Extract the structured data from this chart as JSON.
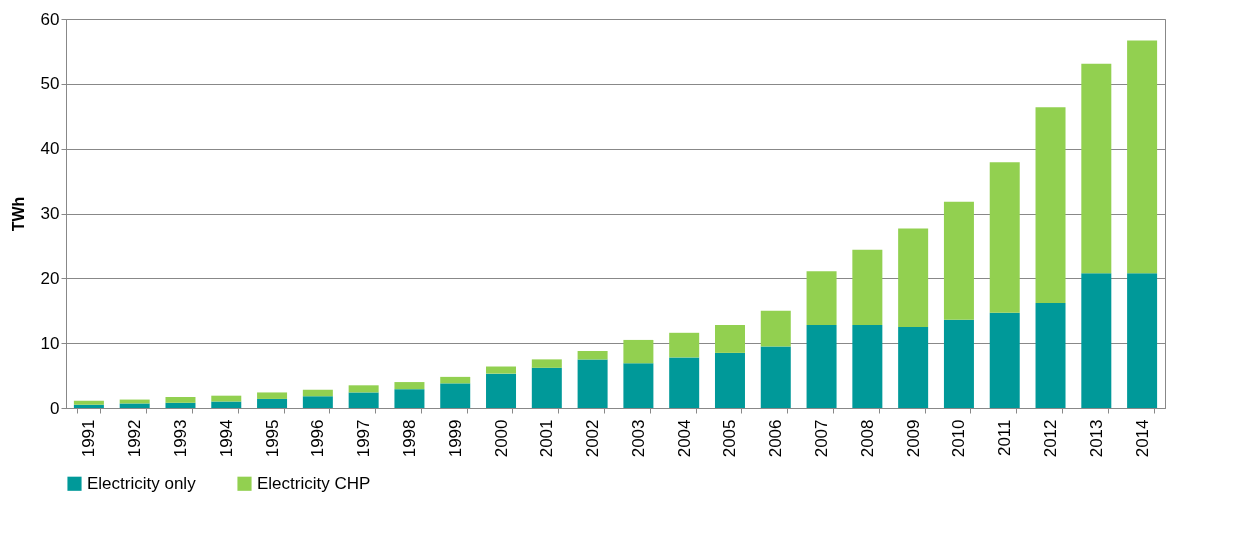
{
  "chart_data": {
    "type": "bar",
    "stacked": true,
    "ylabel": "TWh",
    "categories": [
      "1991",
      "1992",
      "1993",
      "1994",
      "1995",
      "1996",
      "1997",
      "1998",
      "1999",
      "2000",
      "2001",
      "2002",
      "2003",
      "2004",
      "2005",
      "2006",
      "2007",
      "2008",
      "2009",
      "2010",
      "2011",
      "2012",
      "2013",
      "2014"
    ],
    "series": [
      {
        "name": "Electricity only",
        "color": "#009999",
        "values": [
          0.5,
          0.7,
          0.8,
          1.0,
          1.4,
          1.8,
          2.4,
          2.9,
          3.8,
          5.3,
          6.2,
          7.5,
          6.9,
          7.8,
          8.5,
          9.5,
          12.8,
          12.8,
          12.5,
          13.6,
          14.7,
          16.2,
          20.8,
          20.8
        ]
      },
      {
        "name": "Electricity CHP",
        "color": "#92d050",
        "values": [
          0.6,
          0.6,
          0.9,
          0.9,
          1.0,
          1.0,
          1.1,
          1.1,
          1.0,
          1.1,
          1.3,
          1.3,
          3.6,
          3.8,
          4.3,
          5.5,
          8.3,
          11.6,
          15.2,
          18.2,
          23.2,
          30.2,
          32.3,
          35.9
        ]
      }
    ],
    "ylim": [
      0,
      60
    ],
    "yticks": [
      0,
      10,
      20,
      30,
      40,
      50,
      60
    ],
    "grid": "y",
    "legend": "bottom"
  }
}
